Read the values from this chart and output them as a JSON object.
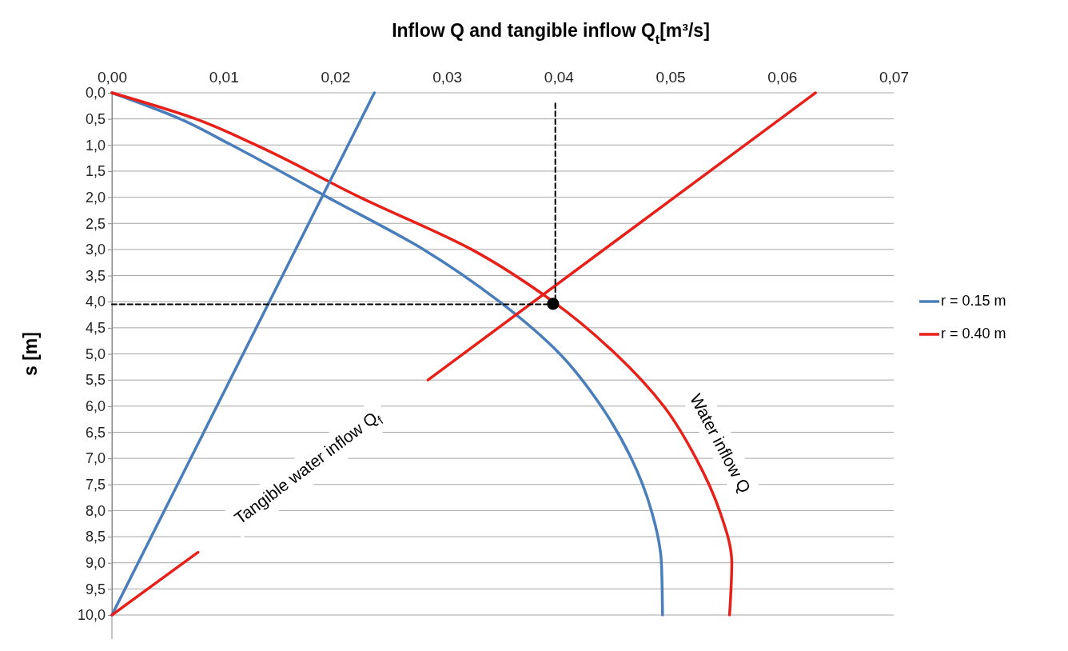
{
  "chart_data": {
    "type": "line",
    "xlabel": "Inflow Q and tangible inflow Q$_{t}$[m³/s]",
    "ylabel": "s [m]",
    "xlim": [
      0,
      0.07
    ],
    "xticks": [
      {
        "value": 0,
        "label": "0,00"
      },
      {
        "value": 0.01,
        "label": "0,01"
      },
      {
        "value": 0.02,
        "label": "0,02"
      },
      {
        "value": 0.03,
        "label": "0,03"
      },
      {
        "value": 0.04,
        "label": "0,04"
      },
      {
        "value": 0.05,
        "label": "0,05"
      },
      {
        "value": 0.06,
        "label": "0,06"
      },
      {
        "value": 0.07,
        "label": "0,07"
      }
    ],
    "ylim": [
      10,
      0
    ],
    "yticks": [
      {
        "value": 0,
        "label": "0,0"
      },
      {
        "value": 0.5,
        "label": "0,5"
      },
      {
        "value": 1,
        "label": "1,0"
      },
      {
        "value": 1.5,
        "label": "1,5"
      },
      {
        "value": 2,
        "label": "2,0"
      },
      {
        "value": 2.5,
        "label": "2,5"
      },
      {
        "value": 3,
        "label": "3,0"
      },
      {
        "value": 3.5,
        "label": "3,5"
      },
      {
        "value": 4,
        "label": "4,0"
      },
      {
        "value": 4.5,
        "label": "4,5"
      },
      {
        "value": 5,
        "label": "5,0"
      },
      {
        "value": 5.5,
        "label": "5,5"
      },
      {
        "value": 6,
        "label": "6,0"
      },
      {
        "value": 6.5,
        "label": "6,5"
      },
      {
        "value": 7,
        "label": "7,0"
      },
      {
        "value": 7.5,
        "label": "7,5"
      },
      {
        "value": 8,
        "label": "8,0"
      },
      {
        "value": 8.5,
        "label": "8,5"
      },
      {
        "value": 9,
        "label": "9,0"
      },
      {
        "value": 9.5,
        "label": "9,5"
      },
      {
        "value": 10,
        "label": "10,0"
      }
    ],
    "grid": "y",
    "legend": "right",
    "series": [
      {
        "name": "r = 0.15 m",
        "color": "#4a7ebb",
        "x": [
          0,
          0.0061,
          0.0107,
          0.0193,
          0.0279,
          0.0347,
          0.0401,
          0.0438,
          0.0465,
          0.0483,
          0.0492,
          0.0493
        ],
        "values": [
          0,
          0.5,
          1,
          2,
          3,
          4,
          5,
          6,
          7,
          8,
          9,
          10
        ]
      },
      {
        "name": "r = 0.40 m",
        "color": "#e8201a",
        "x": [
          0,
          0.0075,
          0.0129,
          0.0222,
          0.0322,
          0.0395,
          0.0451,
          0.0494,
          0.0523,
          0.0544,
          0.0555,
          0.0553
        ],
        "values": [
          0,
          0.5,
          1,
          2,
          3,
          4,
          5,
          6,
          7,
          8,
          9,
          10
        ]
      },
      {
        "color": "#4a7ebb",
        "x": [
          0.0235,
          0
        ],
        "values": [
          0,
          10
        ]
      },
      {
        "color": "#e8201a",
        "x": [
          0.063,
          0.0283,
          0.018,
          0.0077,
          0
        ],
        "values": [
          0,
          5.5,
          null,
          8.8,
          10
        ]
      },
      {
        "color": "#000000",
        "line_style": "dashed",
        "x": [
          0,
          0.0397,
          0.0397
        ],
        "values": [
          4.05,
          4.05,
          0.2
        ]
      },
      {
        "type": "scatter",
        "marker": "circle",
        "color": "#000000",
        "x": [
          0.0395
        ],
        "values": [
          4.04
        ]
      }
    ],
    "annotations": [
      "Tangible water inflow Q$_{f}$",
      "Water inflow Q"
    ]
  }
}
